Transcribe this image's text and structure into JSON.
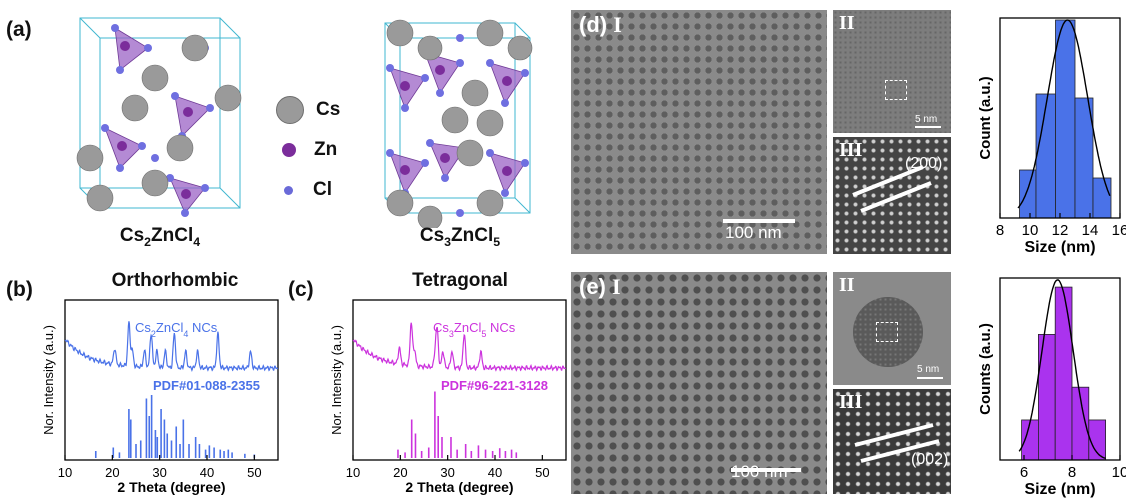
{
  "panels": {
    "a": {
      "label": "(a)",
      "struct1": "Cs2ZnCl4",
      "struct2": "Cs3ZnCl5",
      "legend": [
        {
          "name": "Cs",
          "color": "#9a9a9a"
        },
        {
          "name": "Zn",
          "color": "#7b2d9b"
        },
        {
          "name": "Cl",
          "color": "#6a6ad8"
        }
      ]
    },
    "b": {
      "label": "(b)",
      "title": "Orthorhombic",
      "sample_label": "Cs2ZnCl4 NCs",
      "ref_label": "PDF#01-088-2355",
      "color": "#4a72e8"
    },
    "c": {
      "label": "(c)",
      "title": "Tetragonal",
      "sample_label": "Cs3ZnCl5 NCs",
      "ref_label": "PDF#96-221-3128",
      "color": "#cc33dd"
    },
    "d": {
      "label": "(d)",
      "sub1": "I",
      "sub2": "II",
      "sub3": "III",
      "scale_main": "100 nm",
      "scale_hr": "5 nm",
      "plane": "(200)"
    },
    "e": {
      "label": "(e)",
      "sub1": "I",
      "sub2": "II",
      "sub3": "III",
      "scale_main": "100 nm",
      "scale_hr": "5 nm",
      "plane": "(002)"
    }
  },
  "chart_data": [
    {
      "id": "xrd-b",
      "type": "line",
      "xlabel": "2 Theta (degree)",
      "ylabel": "Nor. Intensity (a.u.)",
      "xlim": [
        10,
        55
      ],
      "xticks": [
        10,
        20,
        30,
        40,
        50
      ],
      "series": [
        {
          "name": "Cs2ZnCl4 NCs",
          "color": "#4a72e8"
        }
      ],
      "peaks": [
        20.5,
        23.5,
        24.2,
        26.8,
        28.2,
        29.4,
        31.2,
        33.1,
        35.5,
        38.0,
        42.3,
        49.2
      ],
      "ref_sticks": [
        {
          "x": 16.5,
          "h": 0.1
        },
        {
          "x": 20.2,
          "h": 0.15
        },
        {
          "x": 21.5,
          "h": 0.08
        },
        {
          "x": 23.5,
          "h": 0.7
        },
        {
          "x": 23.9,
          "h": 0.55
        },
        {
          "x": 25.0,
          "h": 0.2
        },
        {
          "x": 26.0,
          "h": 0.25
        },
        {
          "x": 27.2,
          "h": 0.85
        },
        {
          "x": 27.8,
          "h": 0.6
        },
        {
          "x": 28.3,
          "h": 0.9
        },
        {
          "x": 29.1,
          "h": 0.4
        },
        {
          "x": 29.5,
          "h": 0.3
        },
        {
          "x": 30.3,
          "h": 0.7
        },
        {
          "x": 31.0,
          "h": 0.55
        },
        {
          "x": 31.6,
          "h": 0.35
        },
        {
          "x": 32.5,
          "h": 0.25
        },
        {
          "x": 33.5,
          "h": 0.45
        },
        {
          "x": 34.3,
          "h": 0.2
        },
        {
          "x": 35.0,
          "h": 0.55
        },
        {
          "x": 36.2,
          "h": 0.2
        },
        {
          "x": 37.6,
          "h": 0.3
        },
        {
          "x": 38.4,
          "h": 0.2
        },
        {
          "x": 39.7,
          "h": 0.12
        },
        {
          "x": 40.5,
          "h": 0.18
        },
        {
          "x": 41.5,
          "h": 0.15
        },
        {
          "x": 42.8,
          "h": 0.12
        },
        {
          "x": 43.6,
          "h": 0.1
        },
        {
          "x": 44.5,
          "h": 0.12
        },
        {
          "x": 45.3,
          "h": 0.08
        },
        {
          "x": 48.0,
          "h": 0.06
        },
        {
          "x": 50.0,
          "h": 0.05
        }
      ]
    },
    {
      "id": "xrd-c",
      "type": "line",
      "xlabel": "2 Theta (degree)",
      "ylabel": "Nor. Intensity (a.u.)",
      "xlim": [
        10,
        55
      ],
      "xticks": [
        10,
        20,
        30,
        40,
        50
      ],
      "series": [
        {
          "name": "Cs3ZnCl5 NCs",
          "color": "#cc33dd"
        }
      ],
      "peaks": [
        19.8,
        22.3,
        23.0,
        27.4,
        27.8,
        29.0,
        30.9,
        33.5,
        37.0
      ],
      "ref_sticks": [
        {
          "x": 19.5,
          "h": 0.12
        },
        {
          "x": 21.0,
          "h": 0.08
        },
        {
          "x": 22.4,
          "h": 0.55
        },
        {
          "x": 23.2,
          "h": 0.35
        },
        {
          "x": 24.5,
          "h": 0.1
        },
        {
          "x": 26.0,
          "h": 0.15
        },
        {
          "x": 27.3,
          "h": 0.95
        },
        {
          "x": 28.0,
          "h": 0.6
        },
        {
          "x": 28.8,
          "h": 0.3
        },
        {
          "x": 30.7,
          "h": 0.3
        },
        {
          "x": 32.0,
          "h": 0.12
        },
        {
          "x": 33.8,
          "h": 0.2
        },
        {
          "x": 35.0,
          "h": 0.1
        },
        {
          "x": 36.5,
          "h": 0.18
        },
        {
          "x": 38.0,
          "h": 0.12
        },
        {
          "x": 39.5,
          "h": 0.1
        },
        {
          "x": 41.0,
          "h": 0.14
        },
        {
          "x": 42.2,
          "h": 0.1
        },
        {
          "x": 43.5,
          "h": 0.12
        },
        {
          "x": 44.5,
          "h": 0.08
        }
      ]
    },
    {
      "id": "hist-d",
      "type": "bar",
      "xlabel": "Size (nm)",
      "ylabel": "Count (a.u.)",
      "xlim": [
        8,
        16
      ],
      "xticks": [
        8,
        10,
        12,
        14,
        16
      ],
      "color": "#4a72e8",
      "bins": [
        {
          "x0": 9.3,
          "x1": 10.4,
          "v": 0.24
        },
        {
          "x0": 10.4,
          "x1": 11.7,
          "v": 0.62
        },
        {
          "x0": 11.7,
          "x1": 13.0,
          "v": 0.99
        },
        {
          "x0": 13.0,
          "x1": 14.2,
          "v": 0.6
        },
        {
          "x0": 14.2,
          "x1": 15.4,
          "v": 0.2
        }
      ],
      "fit_mean": 12.5,
      "fit_sigma": 1.35
    },
    {
      "id": "hist-e",
      "type": "bar",
      "xlabel": "Size (nm)",
      "ylabel": "Counts (a.u.)",
      "xlim": [
        5,
        10
      ],
      "xticks": [
        6,
        8,
        10
      ],
      "color": "#aa33ee",
      "bins": [
        {
          "x0": 5.9,
          "x1": 6.6,
          "v": 0.22
        },
        {
          "x0": 6.6,
          "x1": 7.3,
          "v": 0.69
        },
        {
          "x0": 7.3,
          "x1": 8.0,
          "v": 0.95
        },
        {
          "x0": 8.0,
          "x1": 8.7,
          "v": 0.4
        },
        {
          "x0": 8.7,
          "x1": 9.4,
          "v": 0.22
        }
      ],
      "fit_mean": 7.4,
      "fit_sigma": 0.65
    }
  ]
}
